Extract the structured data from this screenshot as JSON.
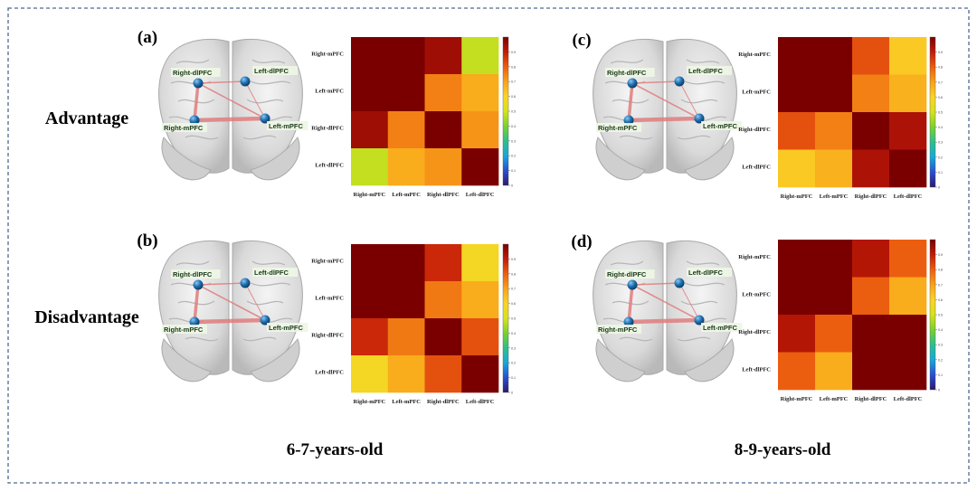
{
  "colors": {
    "frame": "#4f6a8f",
    "edge": "#e07e7e",
    "node": "#1f6fb0",
    "label_bg": "#eef6e4",
    "colormap": [
      "#2b1a6e",
      "#2a4fd0",
      "#17a9d9",
      "#2dbf8b",
      "#7ad12f",
      "#d7e21b",
      "#fbd326",
      "#f8a21a",
      "#ec5e0f",
      "#c21b08",
      "#7a0000"
    ]
  },
  "row_labels": {
    "advantage": "Advantage",
    "disadvantage": "Disadvantage"
  },
  "age_labels": {
    "young": "6-7-years-old",
    "old": "8-9-years-old"
  },
  "colorbar_ticks": [
    "0",
    "0.1",
    "0.2",
    "0.3",
    "0.4",
    "0.5",
    "0.6",
    "0.7",
    "0.8",
    "0.9"
  ],
  "regions": [
    "Right-mPFC",
    "Left-mPFC",
    "Right-dlPFC",
    "Left-dlPFC"
  ],
  "brain_labels": [
    "Right-dlPFC",
    "Left-dlPFC",
    "Right-mPFC",
    "Left-mPFC"
  ],
  "panels": [
    {
      "id": "a",
      "label": "(a)",
      "matrix": [
        [
          1.0,
          1.0,
          0.95,
          0.48
        ],
        [
          1.0,
          1.0,
          0.75,
          0.68
        ],
        [
          0.95,
          0.75,
          1.0,
          0.72
        ],
        [
          0.48,
          0.68,
          0.72,
          1.0
        ]
      ]
    },
    {
      "id": "b",
      "label": "(b)",
      "matrix": [
        [
          1.0,
          1.0,
          0.88,
          0.58
        ],
        [
          1.0,
          1.0,
          0.76,
          0.68
        ],
        [
          0.88,
          0.76,
          1.0,
          0.82
        ],
        [
          0.58,
          0.68,
          0.82,
          1.0
        ]
      ]
    },
    {
      "id": "c",
      "label": "(c)",
      "matrix": [
        [
          1.0,
          1.0,
          0.82,
          0.62
        ],
        [
          1.0,
          1.0,
          0.75,
          0.67
        ],
        [
          0.82,
          0.75,
          1.0,
          0.93
        ],
        [
          0.62,
          0.67,
          0.93,
          1.0
        ]
      ]
    },
    {
      "id": "d",
      "label": "(d)",
      "matrix": [
        [
          1.0,
          1.0,
          0.92,
          0.8
        ],
        [
          1.0,
          1.0,
          0.8,
          0.68
        ],
        [
          0.92,
          0.8,
          1.0,
          1.0
        ],
        [
          0.8,
          0.68,
          1.0,
          1.0
        ]
      ]
    }
  ]
}
